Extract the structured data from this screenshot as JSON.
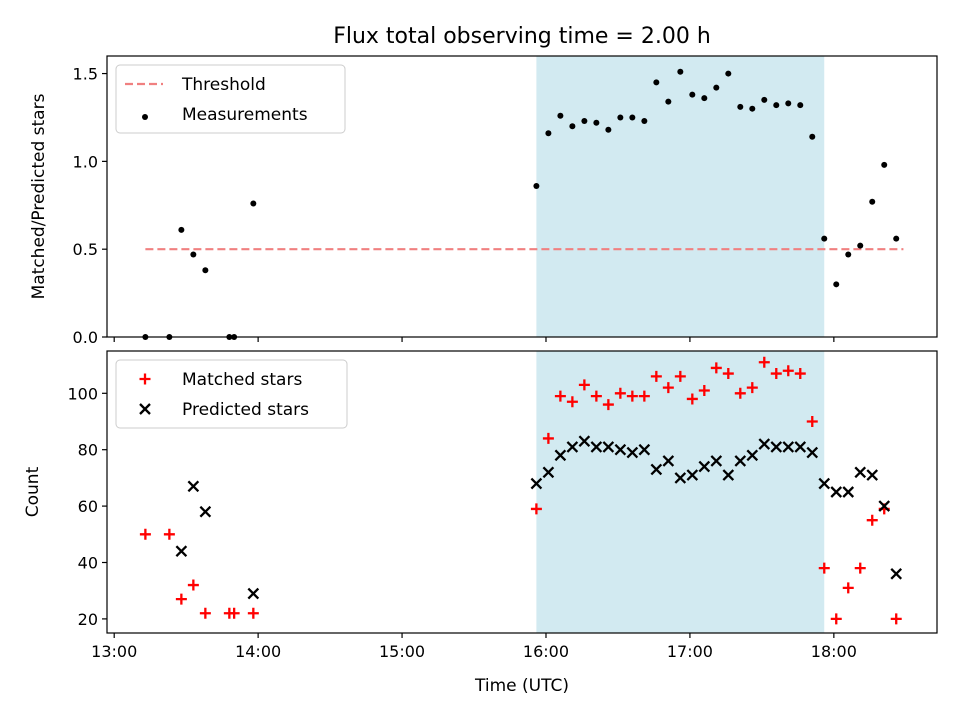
{
  "chart_data": [
    {
      "type": "scatter",
      "title": "Flux total observing time = 2.00 h",
      "xlabel": "",
      "ylabel": "Matched/Predicted stars",
      "xlim": [
        "12:57",
        "18:43"
      ],
      "ylim": [
        0,
        1.6
      ],
      "yticks": [
        0.0,
        0.5,
        1.0,
        1.5
      ],
      "ytick_labels": [
        "0.0",
        "0.5",
        "1.0",
        "1.5"
      ],
      "highlight_span": {
        "x0": "15:56",
        "x1": "17:56",
        "color": "#add8e6"
      },
      "legend": {
        "placement": "upper left"
      },
      "threshold": {
        "name": "Threshold",
        "value": 0.5,
        "x0": "13:13",
        "x1": "18:29",
        "color": "#f08080"
      },
      "series": [
        {
          "name": "Measurements",
          "color": "#000000",
          "marker": "dot",
          "points": [
            [
              "13:13",
              0.0
            ],
            [
              "13:23",
              0.0
            ],
            [
              "13:28",
              0.61
            ],
            [
              "13:33",
              0.47
            ],
            [
              "13:38",
              0.38
            ],
            [
              "13:48",
              0.0
            ],
            [
              "13:50",
              0.0
            ],
            [
              "13:58",
              0.76
            ],
            [
              "15:56",
              0.86
            ],
            [
              "16:01",
              1.16
            ],
            [
              "16:06",
              1.26
            ],
            [
              "16:11",
              1.2
            ],
            [
              "16:16",
              1.23
            ],
            [
              "16:21",
              1.22
            ],
            [
              "16:26",
              1.18
            ],
            [
              "16:31",
              1.25
            ],
            [
              "16:36",
              1.25
            ],
            [
              "16:41",
              1.23
            ],
            [
              "16:46",
              1.45
            ],
            [
              "16:51",
              1.34
            ],
            [
              "16:56",
              1.51
            ],
            [
              "17:01",
              1.38
            ],
            [
              "17:06",
              1.36
            ],
            [
              "17:11",
              1.42
            ],
            [
              "17:16",
              1.5
            ],
            [
              "17:21",
              1.31
            ],
            [
              "17:26",
              1.3
            ],
            [
              "17:31",
              1.35
            ],
            [
              "17:36",
              1.32
            ],
            [
              "17:41",
              1.33
            ],
            [
              "17:46",
              1.32
            ],
            [
              "17:51",
              1.14
            ],
            [
              "17:56",
              0.56
            ],
            [
              "18:01",
              0.3
            ],
            [
              "18:06",
              0.47
            ],
            [
              "18:11",
              0.52
            ],
            [
              "18:16",
              0.77
            ],
            [
              "18:21",
              0.98
            ],
            [
              "18:26",
              0.56
            ]
          ]
        }
      ]
    },
    {
      "type": "scatter",
      "title": "",
      "xlabel": "Time (UTC)",
      "ylabel": "Count",
      "xlim": [
        "12:57",
        "18:43"
      ],
      "ylim": [
        15,
        115
      ],
      "yticks": [
        20,
        40,
        60,
        80,
        100
      ],
      "ytick_labels": [
        "20",
        "40",
        "60",
        "80",
        "100"
      ],
      "xticks": [
        "13:00",
        "14:00",
        "15:00",
        "16:00",
        "17:00",
        "18:00"
      ],
      "xtick_labels": [
        "13:00",
        "14:00",
        "15:00",
        "16:00",
        "17:00",
        "18:00"
      ],
      "highlight_span": {
        "x0": "15:56",
        "x1": "17:56",
        "color": "#add8e6"
      },
      "legend": {
        "placement": "upper left"
      },
      "series": [
        {
          "name": "Matched stars",
          "color": "#ff0000",
          "marker": "plus",
          "points": [
            [
              "13:13",
              50
            ],
            [
              "13:23",
              50
            ],
            [
              "13:28",
              27
            ],
            [
              "13:33",
              32
            ],
            [
              "13:38",
              22
            ],
            [
              "13:48",
              22
            ],
            [
              "13:50",
              22
            ],
            [
              "13:58",
              22
            ],
            [
              "15:56",
              59
            ],
            [
              "16:01",
              84
            ],
            [
              "16:06",
              99
            ],
            [
              "16:11",
              97
            ],
            [
              "16:16",
              103
            ],
            [
              "16:21",
              99
            ],
            [
              "16:26",
              96
            ],
            [
              "16:31",
              100
            ],
            [
              "16:36",
              99
            ],
            [
              "16:41",
              99
            ],
            [
              "16:46",
              106
            ],
            [
              "16:51",
              102
            ],
            [
              "16:56",
              106
            ],
            [
              "17:01",
              98
            ],
            [
              "17:06",
              101
            ],
            [
              "17:11",
              109
            ],
            [
              "17:16",
              107
            ],
            [
              "17:21",
              100
            ],
            [
              "17:26",
              102
            ],
            [
              "17:31",
              111
            ],
            [
              "17:36",
              107
            ],
            [
              "17:41",
              108
            ],
            [
              "17:46",
              107
            ],
            [
              "17:51",
              90
            ],
            [
              "17:56",
              38
            ],
            [
              "18:01",
              20
            ],
            [
              "18:06",
              31
            ],
            [
              "18:11",
              38
            ],
            [
              "18:16",
              55
            ],
            [
              "18:21",
              59
            ],
            [
              "18:26",
              20
            ]
          ]
        },
        {
          "name": "Predicted stars",
          "color": "#000000",
          "marker": "x",
          "points": [
            [
              "13:28",
              44
            ],
            [
              "13:33",
              67
            ],
            [
              "13:38",
              58
            ],
            [
              "13:58",
              29
            ],
            [
              "15:56",
              68
            ],
            [
              "16:01",
              72
            ],
            [
              "16:06",
              78
            ],
            [
              "16:11",
              81
            ],
            [
              "16:16",
              83
            ],
            [
              "16:21",
              81
            ],
            [
              "16:26",
              81
            ],
            [
              "16:31",
              80
            ],
            [
              "16:36",
              79
            ],
            [
              "16:41",
              80
            ],
            [
              "16:46",
              73
            ],
            [
              "16:51",
              76
            ],
            [
              "16:56",
              70
            ],
            [
              "17:01",
              71
            ],
            [
              "17:06",
              74
            ],
            [
              "17:11",
              76
            ],
            [
              "17:16",
              71
            ],
            [
              "17:21",
              76
            ],
            [
              "17:26",
              78
            ],
            [
              "17:31",
              82
            ],
            [
              "17:36",
              81
            ],
            [
              "17:41",
              81
            ],
            [
              "17:46",
              81
            ],
            [
              "17:51",
              79
            ],
            [
              "17:56",
              68
            ],
            [
              "18:01",
              65
            ],
            [
              "18:06",
              65
            ],
            [
              "18:11",
              72
            ],
            [
              "18:16",
              71
            ],
            [
              "18:21",
              60
            ],
            [
              "18:26",
              36
            ]
          ]
        }
      ]
    }
  ]
}
